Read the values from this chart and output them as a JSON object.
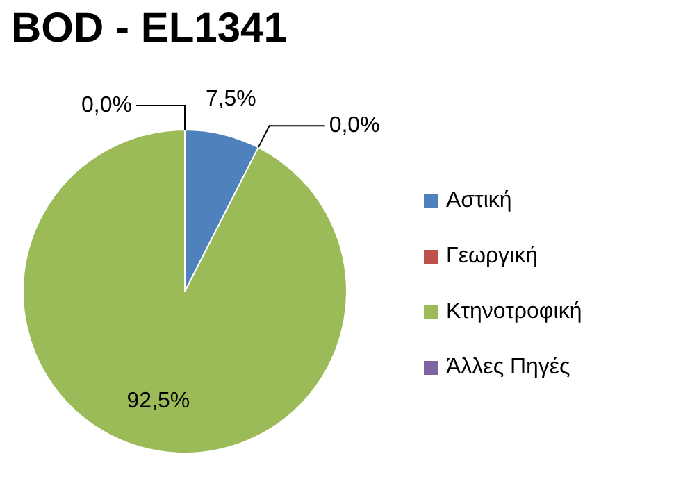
{
  "chart_data": {
    "type": "pie",
    "title": "BOD - EL1341",
    "categories": [
      "Αστική",
      "Γεωργική",
      "Κτηνοτροφική",
      "Άλλες Πηγές"
    ],
    "values": [
      7.5,
      0.0,
      92.5,
      0.0
    ],
    "value_labels": [
      "7,5%",
      "0,0%",
      "92,5%",
      "0,0%"
    ],
    "colors": [
      "#4f81bd",
      "#c0504d",
      "#9bbb59",
      "#8064a2"
    ],
    "legend": "right"
  }
}
